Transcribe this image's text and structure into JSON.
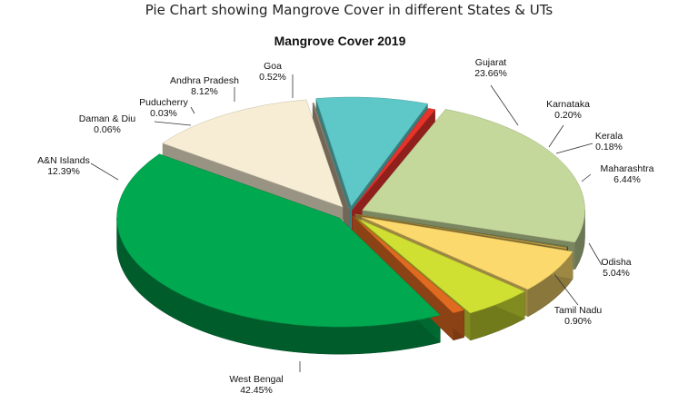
{
  "page_title": "Pie Chart showing Mangrove Cover in different States & UTs",
  "chart_data": {
    "type": "pie",
    "title": "Mangrove Cover 2019",
    "unit": "%",
    "slices": [
      {
        "name": "Gujarat",
        "value": 23.66,
        "label": "23.66%",
        "color": "#c5d89b"
      },
      {
        "name": "Karnataka",
        "value": 0.2,
        "label": "0.20%",
        "color": "#6e7a4a"
      },
      {
        "name": "Kerala",
        "value": 0.18,
        "label": "0.18%",
        "color": "#c8a447"
      },
      {
        "name": "Maharashtra",
        "value": 6.44,
        "label": "6.44%",
        "color": "#fbd96c"
      },
      {
        "name": "Odisha",
        "value": 5.04,
        "label": "5.04%",
        "color": "#cfe033"
      },
      {
        "name": "Tamil Nadu",
        "value": 0.9,
        "label": "0.90%",
        "color": "#e06a20"
      },
      {
        "name": "West Bengal",
        "value": 42.45,
        "label": "42.45%",
        "color": "#00a84f"
      },
      {
        "name": "A&N Islands",
        "value": 12.39,
        "label": "12.39%",
        "color": "#f7edd4"
      },
      {
        "name": "Daman & Diu",
        "value": 0.06,
        "label": "0.06%",
        "color": "#b8a48a"
      },
      {
        "name": "Puducherry",
        "value": 0.03,
        "label": "0.03%",
        "color": "#a08a70"
      },
      {
        "name": "Andhra Pradesh",
        "value": 8.12,
        "label": "8.12%",
        "color": "#5ec8c8"
      },
      {
        "name": "Goa",
        "value": 0.52,
        "label": "0.52%",
        "color": "#e8332b"
      }
    ]
  }
}
